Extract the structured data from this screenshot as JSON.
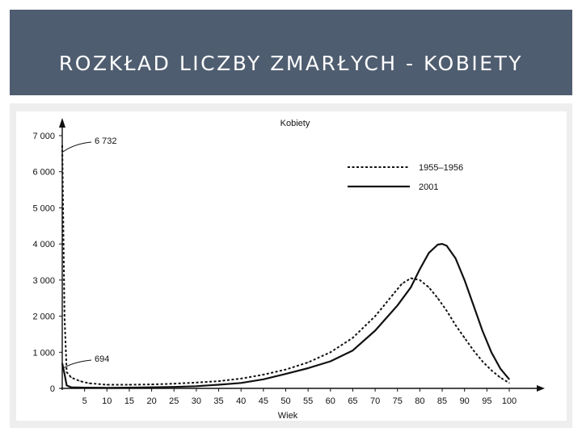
{
  "slide": {
    "title": "ROZKŁAD LICZBY ZMARŁYCH - KOBIETY"
  },
  "chart_data": {
    "type": "line",
    "title": "Kobiety",
    "xlabel": "Wiek",
    "ylabel": "",
    "xlim": [
      0,
      100
    ],
    "ylim": [
      0,
      7000
    ],
    "x_ticks": [
      5,
      10,
      15,
      20,
      25,
      30,
      35,
      40,
      45,
      50,
      55,
      60,
      65,
      70,
      75,
      80,
      85,
      90,
      95,
      100
    ],
    "y_ticks": [
      0,
      1000,
      2000,
      3000,
      4000,
      5000,
      6000,
      7000
    ],
    "y_tick_labels": [
      "0",
      "1 000",
      "2 000",
      "3 000",
      "4 000",
      "5 000",
      "6 000",
      "7 000"
    ],
    "grid": false,
    "legend_position": "top-right",
    "annotations": [
      {
        "text": "6 732",
        "x": 0,
        "y": 6732
      },
      {
        "text": "694",
        "x": 0,
        "y": 694
      }
    ],
    "series": [
      {
        "name": "1955–1956",
        "style": "dashed",
        "color": "#111111",
        "x": [
          0,
          0.5,
          1,
          2,
          4,
          6,
          10,
          15,
          20,
          25,
          30,
          35,
          40,
          45,
          50,
          55,
          60,
          65,
          70,
          72,
          74,
          76,
          78,
          80,
          82,
          84,
          86,
          88,
          90,
          92,
          94,
          96,
          98,
          100
        ],
        "y": [
          6732,
          2000,
          450,
          300,
          200,
          140,
          100,
          100,
          110,
          130,
          160,
          200,
          270,
          380,
          520,
          720,
          1000,
          1400,
          2000,
          2300,
          2600,
          2900,
          3050,
          3000,
          2800,
          2500,
          2150,
          1750,
          1400,
          1050,
          750,
          500,
          300,
          150
        ]
      },
      {
        "name": "2001",
        "style": "solid",
        "color": "#111111",
        "x": [
          0,
          0.5,
          1,
          2,
          5,
          10,
          15,
          20,
          25,
          30,
          35,
          40,
          45,
          50,
          55,
          60,
          65,
          70,
          75,
          78,
          80,
          82,
          84,
          85,
          86,
          88,
          90,
          92,
          94,
          96,
          98,
          100
        ],
        "y": [
          694,
          400,
          80,
          30,
          20,
          15,
          20,
          30,
          40,
          60,
          100,
          150,
          250,
          400,
          560,
          750,
          1050,
          1600,
          2300,
          2800,
          3300,
          3750,
          3980,
          4000,
          3950,
          3600,
          3000,
          2300,
          1600,
          1000,
          550,
          250
        ]
      }
    ]
  }
}
